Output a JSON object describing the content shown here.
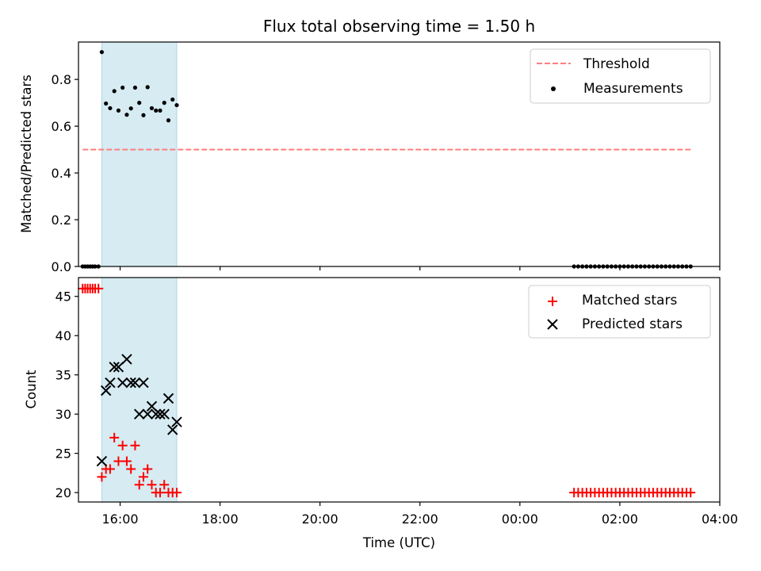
{
  "chart_data": [
    {
      "type": "scatter",
      "title": "Flux total observing time = 1.50 h",
      "xlabel": "",
      "ylabel": "Matched/Predicted stars",
      "x_unit": "hours since 00:00 UTC of first night",
      "xlim": [
        "15:10",
        "04:00"
      ],
      "ylim": [
        0,
        0.96
      ],
      "yticks": [
        0.0,
        0.2,
        0.4,
        0.6,
        0.8
      ],
      "ytick_labels": [
        "0.0",
        "0.2",
        "0.4",
        "0.6",
        "0.8"
      ],
      "observing_window": [
        "15:38",
        "17:08"
      ],
      "shade_color": "#add8e6",
      "legend": {
        "loc": "upper right",
        "entries": [
          "Threshold",
          "Measurements"
        ]
      },
      "threshold": {
        "name": "Threshold",
        "value": 0.5,
        "x": [
          "15:15",
          "03:25"
        ],
        "color": "#ff7f7f",
        "style": "dashed"
      },
      "series": [
        {
          "name": "Measurements",
          "color": "#000000",
          "marker": "dot",
          "points": [
            [
              "15:15",
              0.0
            ],
            [
              "15:18",
              0.0
            ],
            [
              "15:21",
              0.0
            ],
            [
              "15:24",
              0.0
            ],
            [
              "15:27",
              0.0
            ],
            [
              "15:30",
              0.0
            ],
            [
              "15:34",
              0.0
            ],
            [
              "15:38",
              0.917
            ],
            [
              "15:43",
              0.697
            ],
            [
              "15:48",
              0.677
            ],
            [
              "15:53",
              0.75
            ],
            [
              "15:58",
              0.667
            ],
            [
              "16:03",
              0.765
            ],
            [
              "16:08",
              0.649
            ],
            [
              "16:13",
              0.676
            ],
            [
              "16:18",
              0.765
            ],
            [
              "16:23",
              0.7
            ],
            [
              "16:28",
              0.647
            ],
            [
              "16:33",
              0.767
            ],
            [
              "16:38",
              0.677
            ],
            [
              "16:43",
              0.667
            ],
            [
              "16:48",
              0.667
            ],
            [
              "16:53",
              0.7
            ],
            [
              "16:58",
              0.625
            ],
            [
              "17:03",
              0.714
            ],
            [
              "17:08",
              0.69
            ],
            [
              "01:05",
              0.0
            ],
            [
              "01:10",
              0.0
            ],
            [
              "01:15",
              0.0
            ],
            [
              "01:20",
              0.0
            ],
            [
              "01:25",
              0.0
            ],
            [
              "01:30",
              0.0
            ],
            [
              "01:35",
              0.0
            ],
            [
              "01:40",
              0.0
            ],
            [
              "01:45",
              0.0
            ],
            [
              "01:50",
              0.0
            ],
            [
              "01:55",
              0.0
            ],
            [
              "02:00",
              0.0
            ],
            [
              "02:05",
              0.0
            ],
            [
              "02:10",
              0.0
            ],
            [
              "02:15",
              0.0
            ],
            [
              "02:20",
              0.0
            ],
            [
              "02:25",
              0.0
            ],
            [
              "02:30",
              0.0
            ],
            [
              "02:35",
              0.0
            ],
            [
              "02:40",
              0.0
            ],
            [
              "02:45",
              0.0
            ],
            [
              "02:50",
              0.0
            ],
            [
              "02:55",
              0.0
            ],
            [
              "03:00",
              0.0
            ],
            [
              "03:05",
              0.0
            ],
            [
              "03:10",
              0.0
            ],
            [
              "03:15",
              0.0
            ],
            [
              "03:20",
              0.0
            ],
            [
              "03:25",
              0.0
            ]
          ]
        }
      ]
    },
    {
      "type": "scatter",
      "title": "",
      "xlabel": "Time (UTC)",
      "ylabel": "Count",
      "xlim": [
        "15:10",
        "04:00"
      ],
      "xticks": [
        "16:00",
        "18:00",
        "20:00",
        "22:00",
        "00:00",
        "02:00",
        "04:00"
      ],
      "ylim": [
        18.8,
        47.4
      ],
      "yticks": [
        20,
        25,
        30,
        35,
        40,
        45
      ],
      "ytick_labels": [
        "20",
        "25",
        "30",
        "35",
        "40",
        "45"
      ],
      "observing_window": [
        "15:38",
        "17:08"
      ],
      "shade_color": "#add8e6",
      "legend": {
        "loc": "upper right",
        "entries": [
          "Matched stars",
          "Predicted stars"
        ]
      },
      "series": [
        {
          "name": "Matched stars",
          "color": "#ff0000",
          "marker": "plus",
          "points": [
            [
              "15:15",
              46
            ],
            [
              "15:18",
              46
            ],
            [
              "15:21",
              46
            ],
            [
              "15:24",
              46
            ],
            [
              "15:27",
              46
            ],
            [
              "15:30",
              46
            ],
            [
              "15:34",
              46
            ],
            [
              "15:38",
              22
            ],
            [
              "15:43",
              23
            ],
            [
              "15:48",
              23
            ],
            [
              "15:53",
              27
            ],
            [
              "15:58",
              24
            ],
            [
              "16:03",
              26
            ],
            [
              "16:08",
              24
            ],
            [
              "16:13",
              23
            ],
            [
              "16:18",
              26
            ],
            [
              "16:23",
              21
            ],
            [
              "16:28",
              22
            ],
            [
              "16:33",
              23
            ],
            [
              "16:38",
              21
            ],
            [
              "16:43",
              20
            ],
            [
              "16:48",
              20
            ],
            [
              "16:53",
              21
            ],
            [
              "16:58",
              20
            ],
            [
              "17:03",
              20
            ],
            [
              "17:08",
              20
            ],
            [
              "01:05",
              20
            ],
            [
              "01:10",
              20
            ],
            [
              "01:15",
              20
            ],
            [
              "01:20",
              20
            ],
            [
              "01:25",
              20
            ],
            [
              "01:30",
              20
            ],
            [
              "01:35",
              20
            ],
            [
              "01:40",
              20
            ],
            [
              "01:45",
              20
            ],
            [
              "01:50",
              20
            ],
            [
              "01:55",
              20
            ],
            [
              "02:00",
              20
            ],
            [
              "02:05",
              20
            ],
            [
              "02:10",
              20
            ],
            [
              "02:15",
              20
            ],
            [
              "02:20",
              20
            ],
            [
              "02:25",
              20
            ],
            [
              "02:30",
              20
            ],
            [
              "02:35",
              20
            ],
            [
              "02:40",
              20
            ],
            [
              "02:45",
              20
            ],
            [
              "02:50",
              20
            ],
            [
              "02:55",
              20
            ],
            [
              "03:00",
              20
            ],
            [
              "03:05",
              20
            ],
            [
              "03:10",
              20
            ],
            [
              "03:15",
              20
            ],
            [
              "03:20",
              20
            ],
            [
              "03:25",
              20
            ]
          ]
        },
        {
          "name": "Predicted stars",
          "color": "#000000",
          "marker": "x",
          "points": [
            [
              "15:38",
              24
            ],
            [
              "15:43",
              33
            ],
            [
              "15:48",
              34
            ],
            [
              "15:53",
              36
            ],
            [
              "15:58",
              36
            ],
            [
              "16:03",
              34
            ],
            [
              "16:08",
              37
            ],
            [
              "16:13",
              34
            ],
            [
              "16:18",
              34
            ],
            [
              "16:23",
              30
            ],
            [
              "16:28",
              34
            ],
            [
              "16:33",
              30
            ],
            [
              "16:38",
              31
            ],
            [
              "16:43",
              30
            ],
            [
              "16:48",
              30
            ],
            [
              "16:53",
              30
            ],
            [
              "16:58",
              32
            ],
            [
              "17:03",
              28
            ],
            [
              "17:08",
              29
            ]
          ]
        }
      ]
    }
  ]
}
